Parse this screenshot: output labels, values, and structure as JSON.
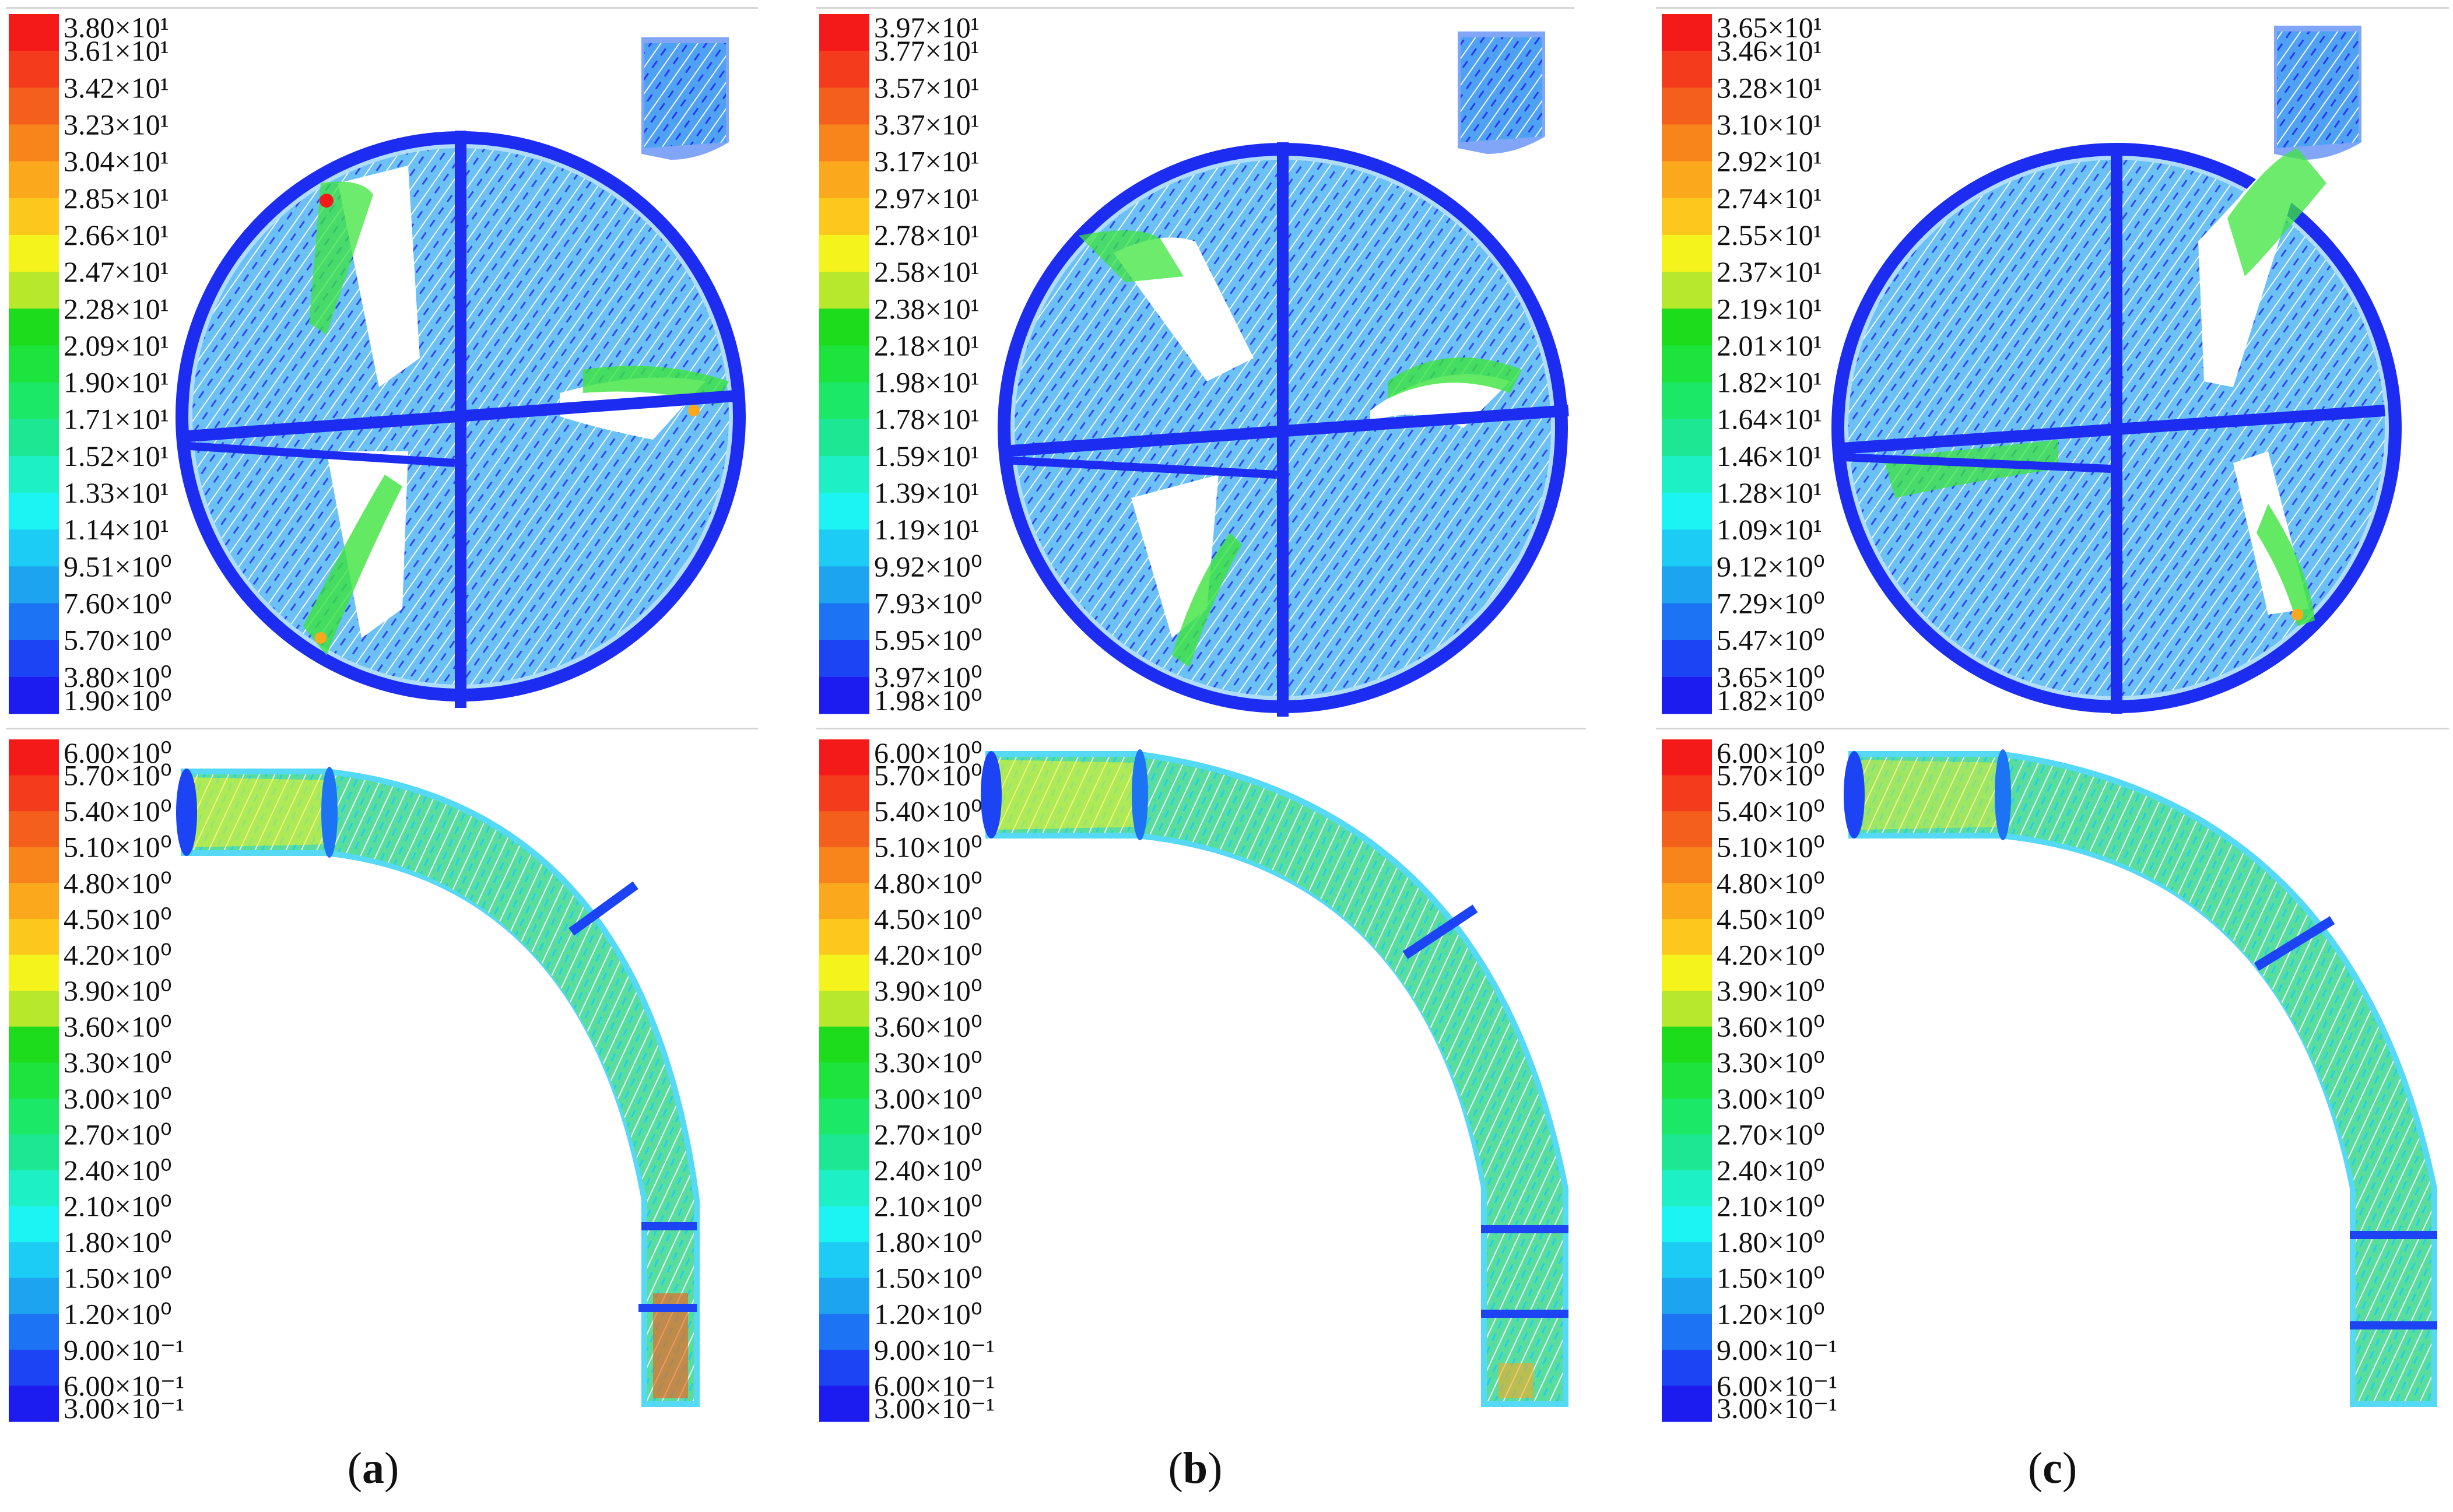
{
  "colors": {
    "legend_bands": [
      "#f41a1a",
      "#f43c1c",
      "#f4601c",
      "#f8841c",
      "#fca81c",
      "#fcc81c",
      "#f4f41c",
      "#b8e82c",
      "#1cdc1c",
      "#1ce43c",
      "#1ce868",
      "#1ce894",
      "#1cf0c4",
      "#1cf4f4",
      "#1cccf4",
      "#1ca4f0",
      "#1c74f4",
      "#1c44f4",
      "#1c1cf0"
    ],
    "particle_low": "#1428e6",
    "particle_mid": "#1cc8f0",
    "particle_high": "#3ce43c",
    "particle_peak": "#f4f41c",
    "particle_max": "#f41a1a"
  },
  "panels": [
    {
      "caption_letter": "a",
      "pump_legend": [
        "3.80×10¹",
        "3.61×10¹",
        "3.42×10¹",
        "3.23×10¹",
        "3.04×10¹",
        "2.85×10¹",
        "2.66×10¹",
        "2.47×10¹",
        "2.28×10¹",
        "2.09×10¹",
        "1.90×10¹",
        "1.71×10¹",
        "1.52×10¹",
        "1.33×10¹",
        "1.14×10¹",
        "9.51×10⁰",
        "7.60×10⁰",
        "5.70×10⁰",
        "3.80×10⁰",
        "1.90×10⁰"
      ],
      "pipe_legend": [
        "6.00×10⁰",
        "5.70×10⁰",
        "5.40×10⁰",
        "5.10×10⁰",
        "4.80×10⁰",
        "4.50×10⁰",
        "4.20×10⁰",
        "3.90×10⁰",
        "3.60×10⁰",
        "3.30×10⁰",
        "3.00×10⁰",
        "2.70×10⁰",
        "2.40×10⁰",
        "2.10×10⁰",
        "1.80×10⁰",
        "1.50×10⁰",
        "1.20×10⁰",
        "9.00×10⁻¹",
        "6.00×10⁻¹",
        "3.00×10⁻¹"
      ]
    },
    {
      "caption_letter": "b",
      "pump_legend": [
        "3.97×10¹",
        "3.77×10¹",
        "3.57×10¹",
        "3.37×10¹",
        "3.17×10¹",
        "2.97×10¹",
        "2.78×10¹",
        "2.58×10¹",
        "2.38×10¹",
        "2.18×10¹",
        "1.98×10¹",
        "1.78×10¹",
        "1.59×10¹",
        "1.39×10¹",
        "1.19×10¹",
        "9.92×10⁰",
        "7.93×10⁰",
        "5.95×10⁰",
        "3.97×10⁰",
        "1.98×10⁰"
      ],
      "pipe_legend": [
        "6.00×10⁰",
        "5.70×10⁰",
        "5.40×10⁰",
        "5.10×10⁰",
        "4.80×10⁰",
        "4.50×10⁰",
        "4.20×10⁰",
        "3.90×10⁰",
        "3.60×10⁰",
        "3.30×10⁰",
        "3.00×10⁰",
        "2.70×10⁰",
        "2.40×10⁰",
        "2.10×10⁰",
        "1.80×10⁰",
        "1.50×10⁰",
        "1.20×10⁰",
        "9.00×10⁻¹",
        "6.00×10⁻¹",
        "3.00×10⁻¹"
      ]
    },
    {
      "caption_letter": "c",
      "pump_legend": [
        "3.65×10¹",
        "3.46×10¹",
        "3.28×10¹",
        "3.10×10¹",
        "2.92×10¹",
        "2.74×10¹",
        "2.55×10¹",
        "2.37×10¹",
        "2.19×10¹",
        "2.01×10¹",
        "1.82×10¹",
        "1.64×10¹",
        "1.46×10¹",
        "1.28×10¹",
        "1.09×10¹",
        "9.12×10⁰",
        "7.29×10⁰",
        "5.47×10⁰",
        "3.65×10⁰",
        "1.82×10⁰"
      ],
      "pipe_legend": [
        "6.00×10⁰",
        "5.70×10⁰",
        "5.40×10⁰",
        "5.10×10⁰",
        "4.80×10⁰",
        "4.50×10⁰",
        "4.20×10⁰",
        "3.90×10⁰",
        "3.60×10⁰",
        "3.30×10⁰",
        "3.00×10⁰",
        "2.70×10⁰",
        "2.40×10⁰",
        "2.10×10⁰",
        "1.80×10⁰",
        "1.50×10⁰",
        "1.20×10⁰",
        "9.00×10⁻¹",
        "6.00×10⁻¹",
        "3.00×10⁻¹"
      ]
    }
  ]
}
